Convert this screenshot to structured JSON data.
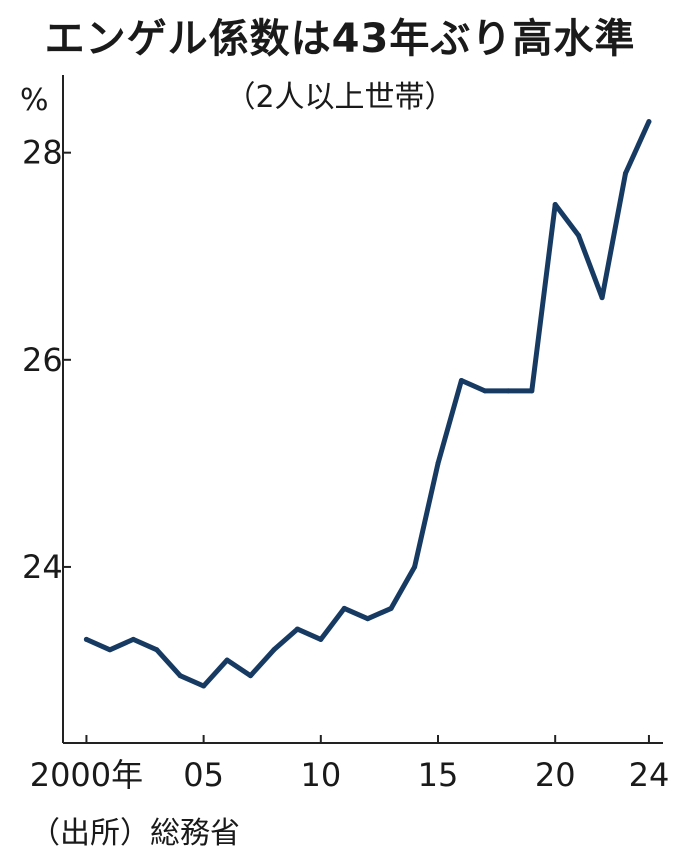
{
  "title": "エンゲル係数は43年ぶり高水準",
  "subtitle": "（2人以上世帯）",
  "source": "（出所）総務省",
  "colors": {
    "line": "#173a63",
    "axis": "#222222",
    "text": "#1a1a1a"
  },
  "chart_data": {
    "type": "line",
    "title": "エンゲル係数は43年ぶり高水準",
    "subtitle": "（2人以上世帯）",
    "xlabel": "",
    "ylabel": "%",
    "x": [
      2000,
      2001,
      2002,
      2003,
      2004,
      2005,
      2006,
      2007,
      2008,
      2009,
      2010,
      2011,
      2012,
      2013,
      2014,
      2015,
      2016,
      2017,
      2018,
      2019,
      2020,
      2021,
      2022,
      2023,
      2024
    ],
    "series": [
      {
        "values": [
          23.3,
          23.2,
          23.3,
          23.2,
          22.95,
          22.85,
          23.1,
          22.95,
          23.2,
          23.4,
          23.3,
          23.6,
          23.5,
          23.6,
          24.0,
          25.0,
          25.8,
          25.7,
          25.7,
          25.7,
          27.5,
          27.2,
          26.6,
          27.8,
          28.3
        ]
      }
    ],
    "xlim": [
      1999,
      2024.6
    ],
    "ylim": [
      22.3,
      28.75
    ],
    "x_ticks": [
      {
        "value": 2000,
        "label": "2000年"
      },
      {
        "value": 2005,
        "label": "05"
      },
      {
        "value": 2010,
        "label": "10"
      },
      {
        "value": 2015,
        "label": "15"
      },
      {
        "value": 2020,
        "label": "20"
      },
      {
        "value": 2024,
        "label": "24"
      }
    ],
    "y_ticks": [
      {
        "value": 24,
        "label": "24"
      },
      {
        "value": 26,
        "label": "26"
      },
      {
        "value": 28,
        "label": "28"
      }
    ],
    "grid": false,
    "legend": "none"
  }
}
